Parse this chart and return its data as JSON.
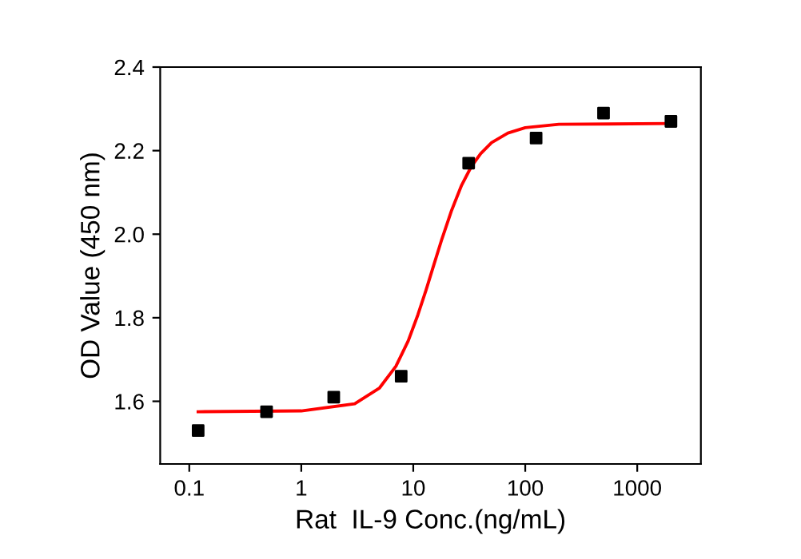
{
  "chart_data": {
    "type": "scatter",
    "xlabel": "Rat  IL-9 Conc.(ng/mL)",
    "ylabel": "OD Value (450 nm)",
    "log": "x",
    "xlim": [
      0.055,
      3700
    ],
    "xticks": [
      0.1,
      1,
      10,
      100,
      1000
    ],
    "ylim": [
      1.45,
      2.4
    ],
    "yticks": [
      1.6,
      1.8,
      {
        "value": 2.0,
        "label": "2.0"
      },
      2.2,
      2.4
    ],
    "grid": false,
    "series": [
      {
        "color": "#000000",
        "marker": "square",
        "x": [
          0.12,
          0.49,
          1.95,
          7.8,
          31.25,
          125,
          500,
          2000
        ],
        "values": [
          1.53,
          1.575,
          1.61,
          1.66,
          2.17,
          2.23,
          2.29,
          2.27
        ]
      },
      {
        "type": "line",
        "color": "#ff0000",
        "marker": "none",
        "line_style": "solid",
        "x": [
          0.12,
          1,
          3,
          5,
          7,
          9,
          11,
          13,
          15,
          18,
          22,
          27,
          33,
          40,
          50,
          70,
          100,
          200,
          2000
        ],
        "values": [
          1.575,
          1.577,
          1.594,
          1.632,
          1.684,
          1.744,
          1.807,
          1.866,
          1.92,
          1.988,
          2.057,
          2.117,
          2.162,
          2.193,
          2.219,
          2.242,
          2.255,
          2.263,
          2.265
        ]
      }
    ]
  }
}
